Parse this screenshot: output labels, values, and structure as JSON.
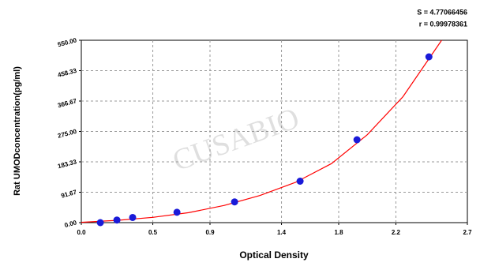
{
  "chart_data": {
    "type": "scatter",
    "annotations": [
      "S = 4.77066456",
      "r = 0.99978361"
    ],
    "watermark": "CUSABIO",
    "xlabel": "Optical Density",
    "ylabel": "Rat UMODconcentration(pg/ml)",
    "xlim": [
      0,
      2.7
    ],
    "ylim": [
      0,
      550
    ],
    "xticks": [
      {
        "value": 0,
        "label": "0.0"
      },
      0.5,
      0.9,
      1.4,
      1.8,
      2.2,
      2.7
    ],
    "yticks": [
      {
        "value": 0,
        "label": "0.00"
      },
      91.67,
      183.33,
      {
        "value": 275,
        "label": "275.00"
      },
      366.67,
      458.33,
      {
        "value": 550,
        "label": "550.00"
      }
    ],
    "grid": true,
    "series": [
      {
        "color": "#1a1ad8",
        "x": [
          0.133,
          0.249,
          0.359,
          0.669,
          1.072,
          1.53,
          1.928,
          2.431
        ],
        "values": [
          0,
          7.8,
          15.6,
          31.25,
          62.5,
          125,
          250,
          500
        ]
      }
    ],
    "fit": {
      "color": "#ff0000",
      "x": [
        0,
        0.25,
        0.5,
        0.75,
        1.0,
        1.25,
        1.5,
        1.75,
        2.0,
        2.25,
        2.52
      ],
      "values": [
        1,
        7,
        16,
        30,
        52,
        82,
        122,
        178,
        265,
        380,
        550
      ]
    }
  }
}
